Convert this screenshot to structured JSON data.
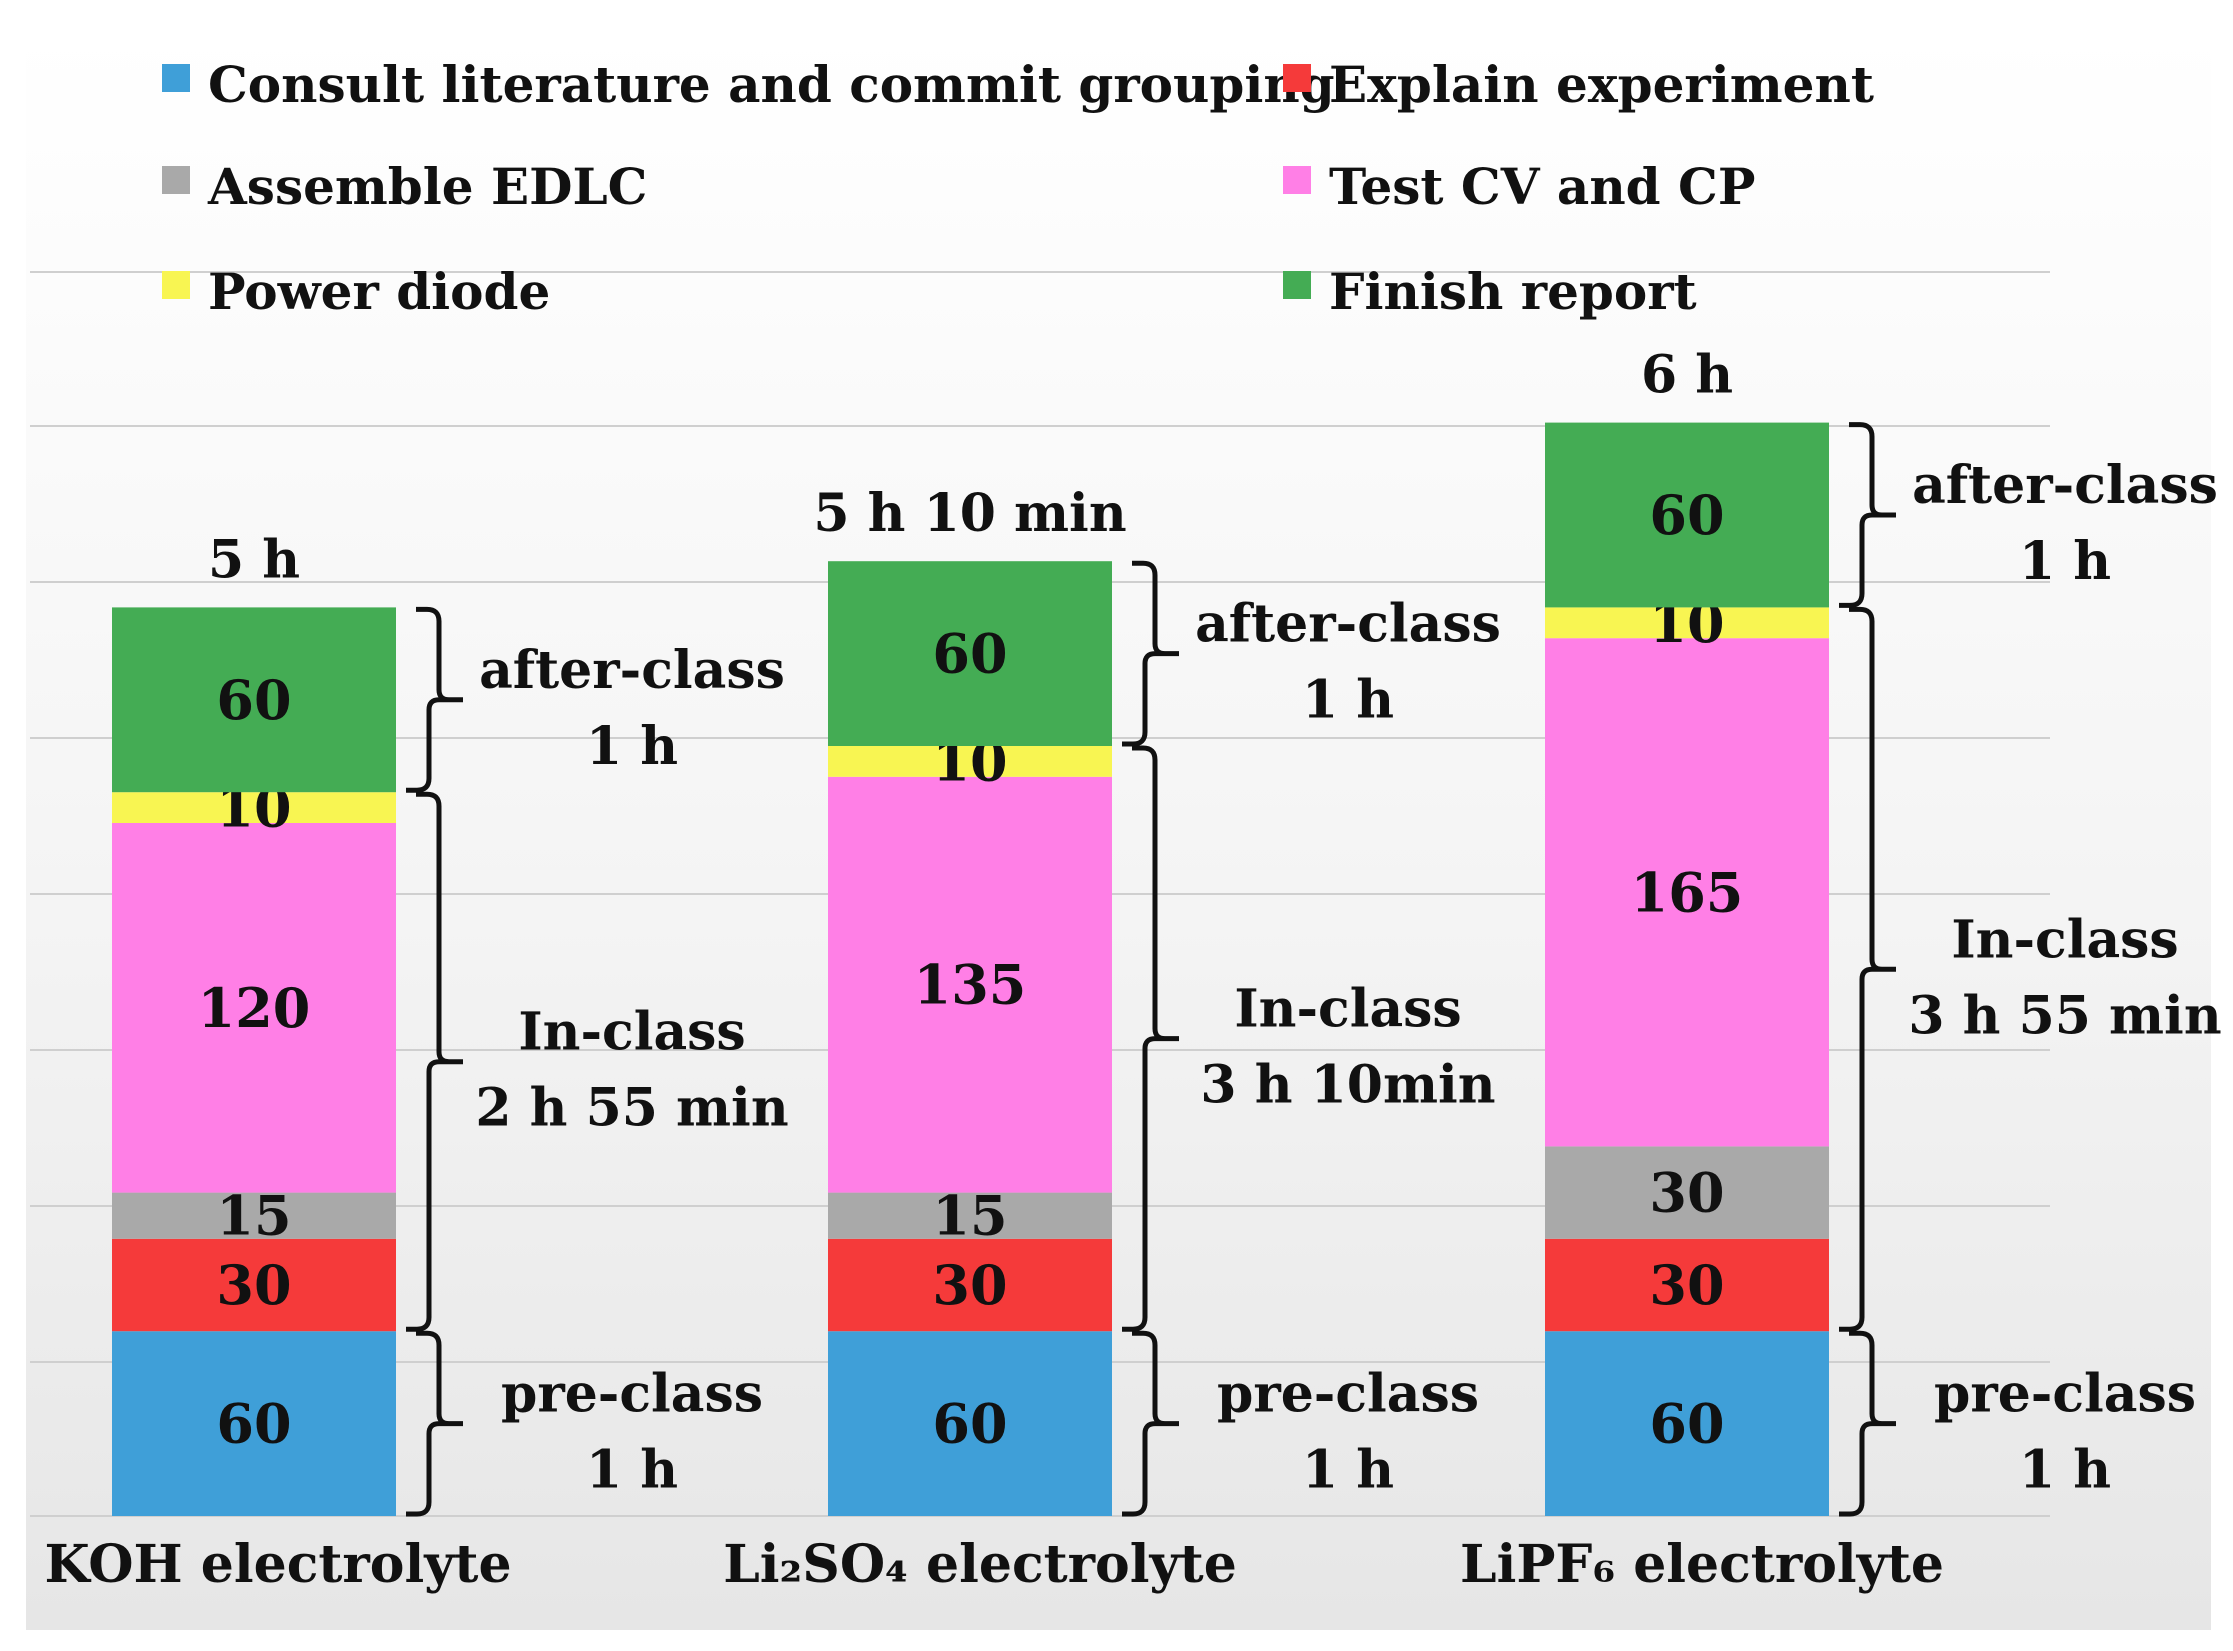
{
  "chart_data": {
    "type": "bar",
    "stacked": true,
    "unit": "min",
    "categories": [
      "KOH electrolyte",
      "Li₂SO₄ electrolyte",
      "LiPF₆ electrolyte"
    ],
    "totals": [
      "5 h",
      "5 h 10 min",
      "6 h"
    ],
    "series": [
      {
        "name": "Consult literature and commit grouping",
        "color": "#3f9fd8",
        "values": [
          60,
          60,
          60
        ]
      },
      {
        "name": "Explain experiment",
        "color": "#f53a3a",
        "values": [
          30,
          30,
          30
        ]
      },
      {
        "name": "Assemble EDLC",
        "color": "#a9a9a9",
        "values": [
          15,
          15,
          30
        ]
      },
      {
        "name": "Test CV and CP",
        "color": "#ff7fe6",
        "values": [
          120,
          135,
          165
        ]
      },
      {
        "name": "Power diode",
        "color": "#f8f552",
        "values": [
          10,
          10,
          10
        ]
      },
      {
        "name": "Finish report",
        "color": "#44ac54",
        "values": [
          60,
          60,
          60
        ]
      }
    ],
    "phases": [
      {
        "name": "pre-class",
        "series_range": [
          0,
          0
        ],
        "labels": [
          {
            "line1": "pre-class",
            "line2": "1 h"
          },
          {
            "line1": "pre-class",
            "line2": "1 h"
          },
          {
            "line1": "pre-class",
            "line2": "1 h"
          }
        ]
      },
      {
        "name": "In-class",
        "series_range": [
          1,
          4
        ],
        "labels": [
          {
            "line1": "In-class",
            "line2": "2 h 55 min"
          },
          {
            "line1": "In-class",
            "line2": "3 h 10min"
          },
          {
            "line1": "In-class",
            "line2": "3 h 55 min"
          }
        ]
      },
      {
        "name": "after-class",
        "series_range": [
          5,
          5
        ],
        "labels": [
          {
            "line1": "after-class",
            "line2": "1 h"
          },
          {
            "line1": "after-class",
            "line2": "1 h"
          },
          {
            "line1": "after-class",
            "line2": "1 h"
          }
        ]
      }
    ],
    "legend_position": "top",
    "grid": true,
    "ylim": [
      0,
      360
    ]
  }
}
